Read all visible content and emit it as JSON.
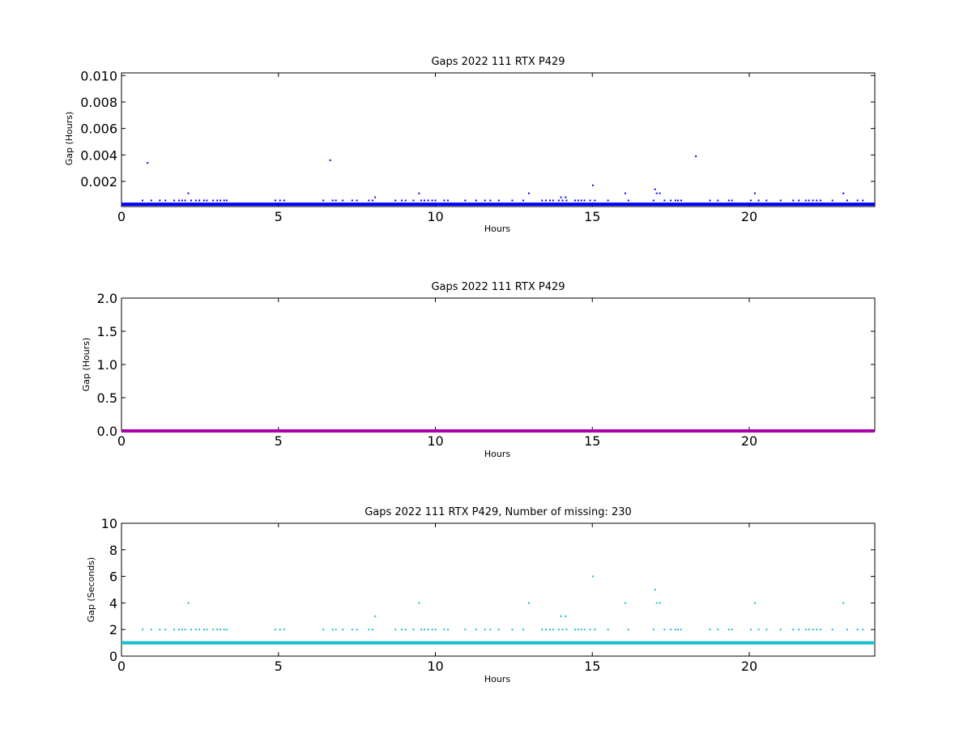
{
  "chart_data": [
    {
      "type": "scatter",
      "title": "Gaps 2022 111 RTX  P429",
      "xlabel": "Hours",
      "ylabel": "Gap (Hours)",
      "xlim": [
        0,
        24
      ],
      "ylim": [
        0.0001,
        0.0102
      ],
      "xticks": [
        "0",
        "5",
        "10",
        "15",
        "20"
      ],
      "xtick_values": [
        0,
        5,
        10,
        15,
        20
      ],
      "yticks": [
        "0.002",
        "0.004",
        "0.006",
        "0.008",
        "0.010"
      ],
      "ytick_values": [
        0.002,
        0.004,
        0.006,
        0.008,
        0.01
      ],
      "grid": false,
      "color": "#0000ff",
      "baseline": {
        "y": 0.000278,
        "x_range": [
          0,
          24
        ],
        "color": "#0000ff"
      },
      "series": [
        {
          "points": [
            [
              0.83,
              0.0034
            ],
            [
              6.65,
              0.0036
            ],
            [
              18.3,
              0.0039
            ],
            [
              2.13,
              0.0011
            ],
            [
              8.08,
              0.0008
            ],
            [
              9.48,
              0.0011
            ],
            [
              12.98,
              0.0011
            ],
            [
              14.0,
              0.0008
            ],
            [
              14.15,
              0.0008
            ],
            [
              15.02,
              0.0017
            ],
            [
              16.05,
              0.0011
            ],
            [
              17.0,
              0.0014
            ],
            [
              17.05,
              0.0011
            ],
            [
              17.15,
              0.0011
            ],
            [
              20.18,
              0.0011
            ],
            [
              23.0,
              0.0011
            ],
            [
              0.67,
              0.00056
            ],
            [
              0.95,
              0.00056
            ],
            [
              1.22,
              0.00056
            ],
            [
              1.4,
              0.00056
            ],
            [
              1.68,
              0.00056
            ],
            [
              1.83,
              0.00056
            ],
            [
              1.93,
              0.00056
            ],
            [
              2.03,
              0.00056
            ],
            [
              2.22,
              0.00056
            ],
            [
              2.37,
              0.00056
            ],
            [
              2.48,
              0.00056
            ],
            [
              2.63,
              0.00056
            ],
            [
              2.72,
              0.00056
            ],
            [
              2.92,
              0.00056
            ],
            [
              3.05,
              0.00056
            ],
            [
              3.15,
              0.00056
            ],
            [
              3.27,
              0.00056
            ],
            [
              3.35,
              0.00056
            ],
            [
              4.9,
              0.00056
            ],
            [
              5.05,
              0.00056
            ],
            [
              5.18,
              0.00056
            ],
            [
              6.43,
              0.00056
            ],
            [
              6.73,
              0.00056
            ],
            [
              6.83,
              0.00056
            ],
            [
              7.05,
              0.00056
            ],
            [
              7.35,
              0.00056
            ],
            [
              7.5,
              0.00056
            ],
            [
              7.88,
              0.00056
            ],
            [
              8.0,
              0.00056
            ],
            [
              8.73,
              0.00056
            ],
            [
              8.93,
              0.00056
            ],
            [
              9.05,
              0.00056
            ],
            [
              9.3,
              0.00056
            ],
            [
              9.55,
              0.00056
            ],
            [
              9.65,
              0.00056
            ],
            [
              9.77,
              0.00056
            ],
            [
              9.9,
              0.00056
            ],
            [
              10.0,
              0.00056
            ],
            [
              10.28,
              0.00056
            ],
            [
              10.4,
              0.00056
            ],
            [
              10.95,
              0.00056
            ],
            [
              11.3,
              0.00056
            ],
            [
              11.58,
              0.00056
            ],
            [
              11.75,
              0.00056
            ],
            [
              12.02,
              0.00056
            ],
            [
              12.45,
              0.00056
            ],
            [
              12.8,
              0.00056
            ],
            [
              13.4,
              0.00056
            ],
            [
              13.52,
              0.00056
            ],
            [
              13.65,
              0.00056
            ],
            [
              13.75,
              0.00056
            ],
            [
              13.93,
              0.00056
            ],
            [
              14.05,
              0.00056
            ],
            [
              14.18,
              0.00056
            ],
            [
              14.45,
              0.00056
            ],
            [
              14.55,
              0.00056
            ],
            [
              14.65,
              0.00056
            ],
            [
              14.75,
              0.00056
            ],
            [
              14.93,
              0.00056
            ],
            [
              15.08,
              0.00056
            ],
            [
              15.5,
              0.00056
            ],
            [
              16.15,
              0.00056
            ],
            [
              16.95,
              0.00056
            ],
            [
              17.3,
              0.00056
            ],
            [
              17.5,
              0.00056
            ],
            [
              17.65,
              0.00056
            ],
            [
              17.73,
              0.00056
            ],
            [
              17.83,
              0.00056
            ],
            [
              18.75,
              0.00056
            ],
            [
              19.0,
              0.00056
            ],
            [
              19.35,
              0.00056
            ],
            [
              19.45,
              0.00056
            ],
            [
              20.05,
              0.00056
            ],
            [
              20.3,
              0.00056
            ],
            [
              20.55,
              0.00056
            ],
            [
              21.0,
              0.00056
            ],
            [
              21.4,
              0.00056
            ],
            [
              21.58,
              0.00056
            ],
            [
              21.8,
              0.00056
            ],
            [
              21.9,
              0.00056
            ],
            [
              22.03,
              0.00056
            ],
            [
              22.15,
              0.00056
            ],
            [
              22.27,
              0.00056
            ],
            [
              22.65,
              0.00056
            ],
            [
              23.12,
              0.00056
            ],
            [
              23.45,
              0.00056
            ],
            [
              23.62,
              0.00056
            ]
          ]
        }
      ]
    },
    {
      "type": "scatter",
      "title": "Gaps 2022 111 RTX  P429",
      "xlabel": "Hours",
      "ylabel": "Gap (Hours)",
      "xlim": [
        0,
        24
      ],
      "ylim": [
        0,
        2
      ],
      "xticks": [
        "0",
        "5",
        "10",
        "15",
        "20"
      ],
      "xtick_values": [
        0,
        5,
        10,
        15,
        20
      ],
      "yticks": [
        "0.0",
        "0.5",
        "1.0",
        "1.5",
        "2.0"
      ],
      "ytick_values": [
        0,
        0.5,
        1.0,
        1.5,
        2.0
      ],
      "grid": false,
      "color": "#aa00aa",
      "baseline": {
        "y": 0.0,
        "x_range": [
          0,
          24
        ],
        "color": "#aa00aa"
      },
      "series": [
        {
          "points": []
        }
      ]
    },
    {
      "type": "scatter",
      "title": "Gaps 2022 111 RTX  P429, Number of missing: 230",
      "xlabel": "Hours",
      "ylabel": "Gap (Seconds)",
      "xlim": [
        0,
        24
      ],
      "ylim": [
        0,
        10
      ],
      "xticks": [
        "0",
        "5",
        "10",
        "15",
        "20"
      ],
      "xtick_values": [
        0,
        5,
        10,
        15,
        20
      ],
      "yticks": [
        "0",
        "2",
        "4",
        "6",
        "8",
        "10"
      ],
      "ytick_values": [
        0,
        2,
        4,
        6,
        8,
        10
      ],
      "grid": false,
      "color": "#17becf",
      "baseline": {
        "y": 1,
        "x_range": [
          0,
          24
        ],
        "color": "#17becf"
      },
      "series": [
        {
          "points": [
            [
              15.02,
              6
            ],
            [
              17.0,
              5
            ],
            [
              2.13,
              4
            ],
            [
              9.48,
              4
            ],
            [
              12.98,
              4
            ],
            [
              16.05,
              4
            ],
            [
              17.05,
              4
            ],
            [
              17.15,
              4
            ],
            [
              20.18,
              4
            ],
            [
              23.0,
              4
            ],
            [
              8.08,
              3
            ],
            [
              14.0,
              3
            ],
            [
              14.15,
              3
            ],
            [
              0.67,
              2
            ],
            [
              0.95,
              2
            ],
            [
              1.22,
              2
            ],
            [
              1.4,
              2
            ],
            [
              1.68,
              2
            ],
            [
              1.83,
              2
            ],
            [
              1.93,
              2
            ],
            [
              2.03,
              2
            ],
            [
              2.22,
              2
            ],
            [
              2.37,
              2
            ],
            [
              2.48,
              2
            ],
            [
              2.63,
              2
            ],
            [
              2.72,
              2
            ],
            [
              2.92,
              2
            ],
            [
              3.05,
              2
            ],
            [
              3.15,
              2
            ],
            [
              3.27,
              2
            ],
            [
              3.35,
              2
            ],
            [
              4.9,
              2
            ],
            [
              5.05,
              2
            ],
            [
              5.18,
              2
            ],
            [
              6.43,
              2
            ],
            [
              6.73,
              2
            ],
            [
              6.83,
              2
            ],
            [
              7.05,
              2
            ],
            [
              7.35,
              2
            ],
            [
              7.5,
              2
            ],
            [
              7.88,
              2
            ],
            [
              8.0,
              2
            ],
            [
              8.73,
              2
            ],
            [
              8.93,
              2
            ],
            [
              9.05,
              2
            ],
            [
              9.3,
              2
            ],
            [
              9.55,
              2
            ],
            [
              9.65,
              2
            ],
            [
              9.77,
              2
            ],
            [
              9.9,
              2
            ],
            [
              10.0,
              2
            ],
            [
              10.28,
              2
            ],
            [
              10.4,
              2
            ],
            [
              10.95,
              2
            ],
            [
              11.3,
              2
            ],
            [
              11.58,
              2
            ],
            [
              11.75,
              2
            ],
            [
              12.02,
              2
            ],
            [
              12.45,
              2
            ],
            [
              12.8,
              2
            ],
            [
              13.4,
              2
            ],
            [
              13.52,
              2
            ],
            [
              13.65,
              2
            ],
            [
              13.75,
              2
            ],
            [
              13.93,
              2
            ],
            [
              14.05,
              2
            ],
            [
              14.18,
              2
            ],
            [
              14.45,
              2
            ],
            [
              14.55,
              2
            ],
            [
              14.65,
              2
            ],
            [
              14.75,
              2
            ],
            [
              14.93,
              2
            ],
            [
              15.08,
              2
            ],
            [
              15.5,
              2
            ],
            [
              16.15,
              2
            ],
            [
              16.95,
              2
            ],
            [
              17.3,
              2
            ],
            [
              17.5,
              2
            ],
            [
              17.65,
              2
            ],
            [
              17.73,
              2
            ],
            [
              17.83,
              2
            ],
            [
              18.75,
              2
            ],
            [
              19.0,
              2
            ],
            [
              19.35,
              2
            ],
            [
              19.45,
              2
            ],
            [
              20.05,
              2
            ],
            [
              20.3,
              2
            ],
            [
              20.55,
              2
            ],
            [
              21.0,
              2
            ],
            [
              21.4,
              2
            ],
            [
              21.58,
              2
            ],
            [
              21.8,
              2
            ],
            [
              21.9,
              2
            ],
            [
              22.03,
              2
            ],
            [
              22.15,
              2
            ],
            [
              22.27,
              2
            ],
            [
              22.65,
              2
            ],
            [
              23.12,
              2
            ],
            [
              23.45,
              2
            ],
            [
              23.62,
              2
            ]
          ]
        }
      ]
    }
  ]
}
